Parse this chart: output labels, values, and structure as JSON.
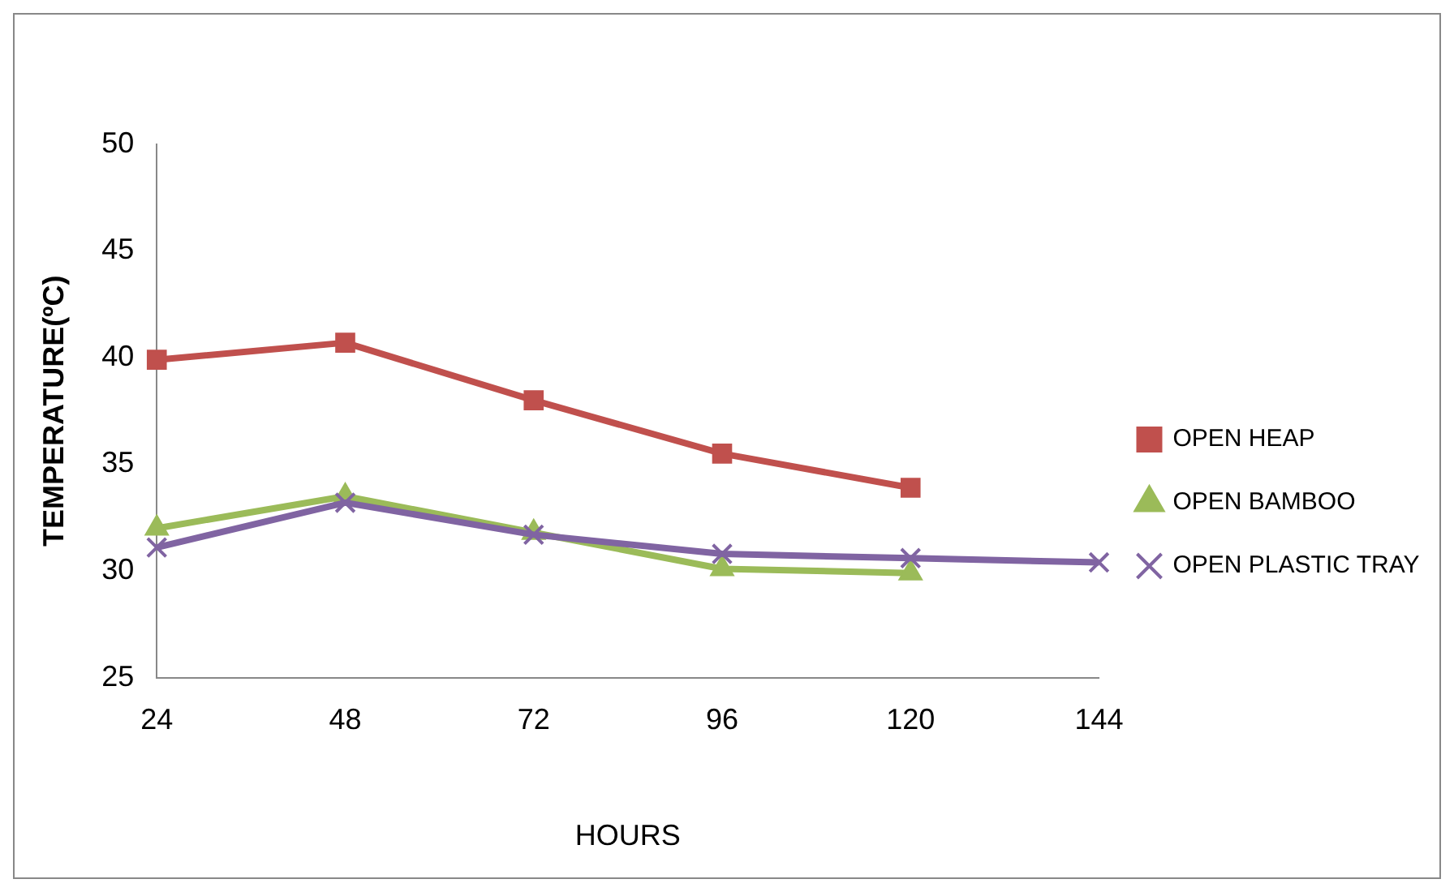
{
  "chart_data": {
    "type": "line",
    "xlabel": "HOURS",
    "ylabel": "TEMPERATURE(ºC)",
    "categories": [
      "24",
      "48",
      "72",
      "96",
      "120",
      "144"
    ],
    "series": [
      {
        "name": "OPEN HEAP",
        "color": "#c0504d",
        "marker": "square",
        "values": [
          39.9,
          40.7,
          38.0,
          35.5,
          33.9,
          null
        ]
      },
      {
        "name": "OPEN BAMBOO",
        "color": "#9bbb59",
        "marker": "triangle",
        "values": [
          32.0,
          33.5,
          31.8,
          30.1,
          29.9,
          null
        ]
      },
      {
        "name": "OPEN PLASTIC TRAY",
        "color": "#8064a2",
        "marker": "cross",
        "values": [
          31.1,
          33.2,
          31.7,
          30.8,
          30.6,
          30.4
        ]
      }
    ],
    "ylim": [
      25,
      50
    ],
    "yticks": [
      25,
      30,
      35,
      40,
      45,
      50
    ],
    "grid": false,
    "legend": "right",
    "line_style": "solid"
  }
}
